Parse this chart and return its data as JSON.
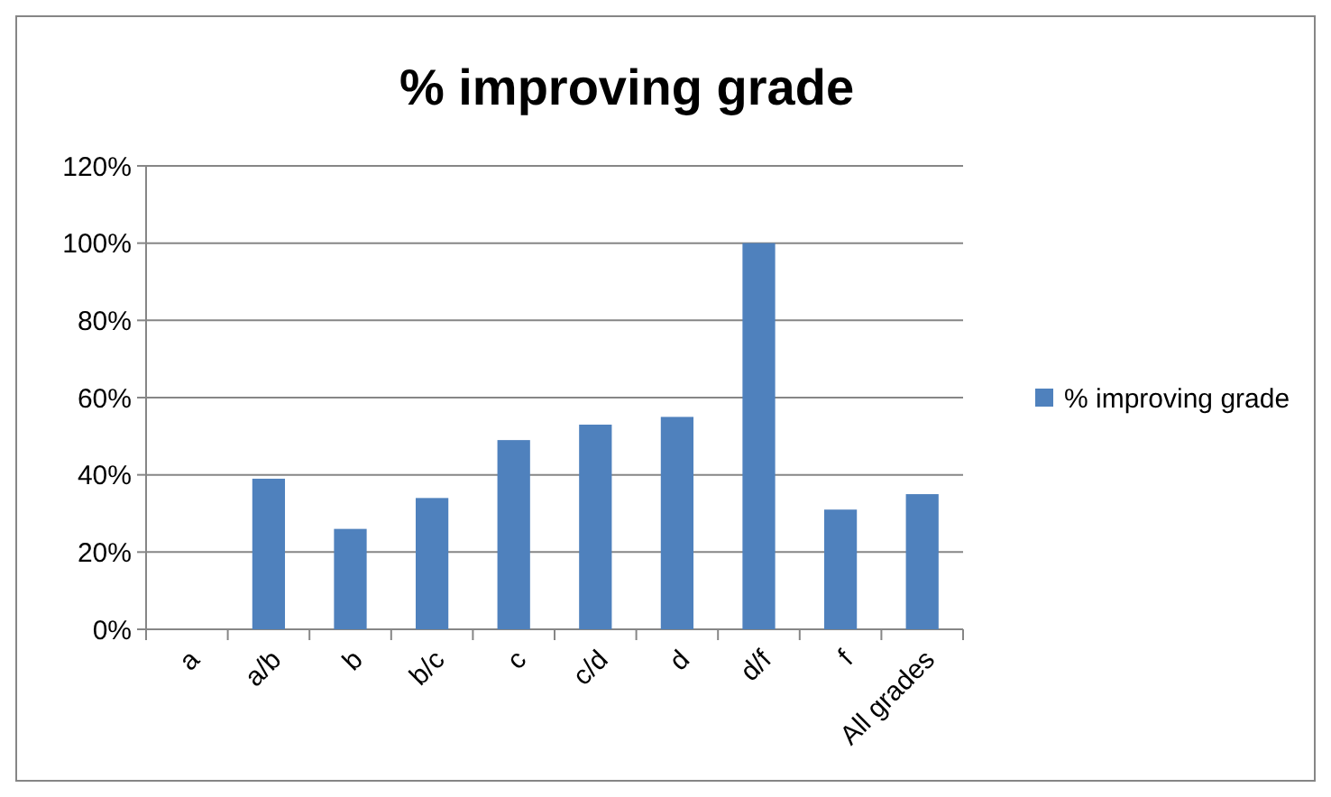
{
  "chart_data": {
    "type": "bar",
    "title": "% improving grade",
    "categories": [
      "a",
      "a/b",
      "b",
      "b/c",
      "c",
      "c/d",
      "d",
      "d/f",
      "f",
      "All grades"
    ],
    "series": [
      {
        "name": "% improving grade",
        "color": "#4f81bd",
        "values": [
          0,
          39,
          26,
          34,
          49,
          53,
          55,
          100,
          31,
          35
        ]
      }
    ],
    "ylim": [
      0,
      120
    ],
    "yticks": [
      {
        "value": 0,
        "label": "0%"
      },
      {
        "value": 20,
        "label": "20%"
      },
      {
        "value": 40,
        "label": "40%"
      },
      {
        "value": 60,
        "label": "60%"
      },
      {
        "value": 80,
        "label": "80%"
      },
      {
        "value": 100,
        "label": "100%"
      },
      {
        "value": 120,
        "label": "120%"
      }
    ],
    "grid": "y",
    "legend": "right"
  }
}
